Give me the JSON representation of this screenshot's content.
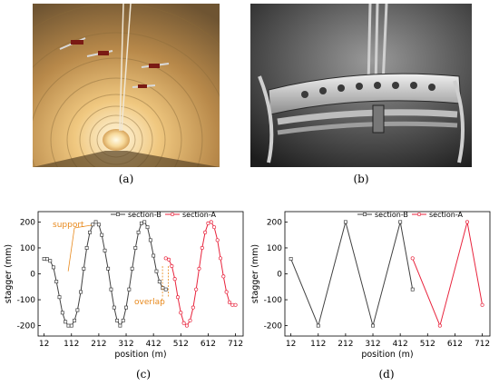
{
  "captions": {
    "a": "(a)",
    "b": "(b)",
    "c": "(c)",
    "d": "(d)"
  },
  "photos": {
    "a": {
      "icon": "tunnel-photo"
    },
    "b": {
      "icon": "cantilever-photo"
    }
  },
  "chart_data": [
    {
      "type": "line",
      "panel": "c",
      "xlabel": "position (m)",
      "ylabel": "stagger (mm)",
      "xticks": [
        12,
        112,
        212,
        312,
        412,
        512,
        612,
        712
      ],
      "yticks": [
        -200,
        -100,
        0,
        100,
        200
      ],
      "xlim": [
        -10,
        740
      ],
      "ylim": [
        -240,
        240
      ],
      "legend_position": "top-right",
      "annotations": [
        {
          "text": "support",
          "color": "#e8891c"
        },
        {
          "text": "overlap",
          "color": "#e8891c"
        }
      ],
      "series": [
        {
          "name": "section-B",
          "color": "#404040",
          "marker": "square",
          "x": [
            12,
            23,
            34,
            46,
            57,
            68,
            79,
            90,
            101,
            112,
            123,
            134,
            146,
            157,
            168,
            179,
            190,
            201,
            212,
            223,
            234,
            246,
            257,
            268,
            279,
            290,
            301,
            312,
            323,
            334,
            346,
            357,
            368,
            379,
            390,
            401,
            412,
            423,
            434,
            446,
            457
          ],
          "y": [
            58,
            57,
            50,
            25,
            -30,
            -90,
            -150,
            -185,
            -200,
            -200,
            -180,
            -140,
            -70,
            20,
            100,
            160,
            190,
            200,
            190,
            150,
            90,
            20,
            -60,
            -130,
            -180,
            -200,
            -180,
            -130,
            -60,
            20,
            100,
            160,
            195,
            200,
            180,
            130,
            70,
            10,
            -30,
            -55,
            -60
          ]
        },
        {
          "name": "section-A",
          "color": "#e8233c",
          "marker": "circle",
          "x": [
            457,
            468,
            479,
            490,
            501,
            512,
            523,
            534,
            546,
            557,
            568,
            579,
            590,
            601,
            612,
            623,
            634,
            646,
            657,
            668,
            679,
            690,
            701,
            712
          ],
          "y": [
            60,
            55,
            30,
            -20,
            -90,
            -150,
            -190,
            -200,
            -180,
            -130,
            -60,
            20,
            100,
            160,
            195,
            200,
            180,
            130,
            60,
            -10,
            -70,
            -110,
            -120,
            -120
          ]
        }
      ]
    },
    {
      "type": "line",
      "panel": "d",
      "xlabel": "position (m)",
      "ylabel": "stagger (mm)",
      "xticks": [
        12,
        112,
        212,
        312,
        412,
        512,
        612,
        712
      ],
      "yticks": [
        -200,
        -100,
        0,
        100,
        200
      ],
      "xlim": [
        -10,
        740
      ],
      "ylim": [
        -240,
        240
      ],
      "legend_position": "top-right",
      "series": [
        {
          "name": "section-B",
          "color": "#404040",
          "marker": "square",
          "x": [
            12,
            112,
            212,
            312,
            412,
            457
          ],
          "y": [
            58,
            -200,
            200,
            -200,
            200,
            -60
          ]
        },
        {
          "name": "section-A",
          "color": "#e8233c",
          "marker": "circle",
          "x": [
            457,
            557,
            657,
            712
          ],
          "y": [
            60,
            -200,
            200,
            -120
          ]
        }
      ]
    }
  ]
}
